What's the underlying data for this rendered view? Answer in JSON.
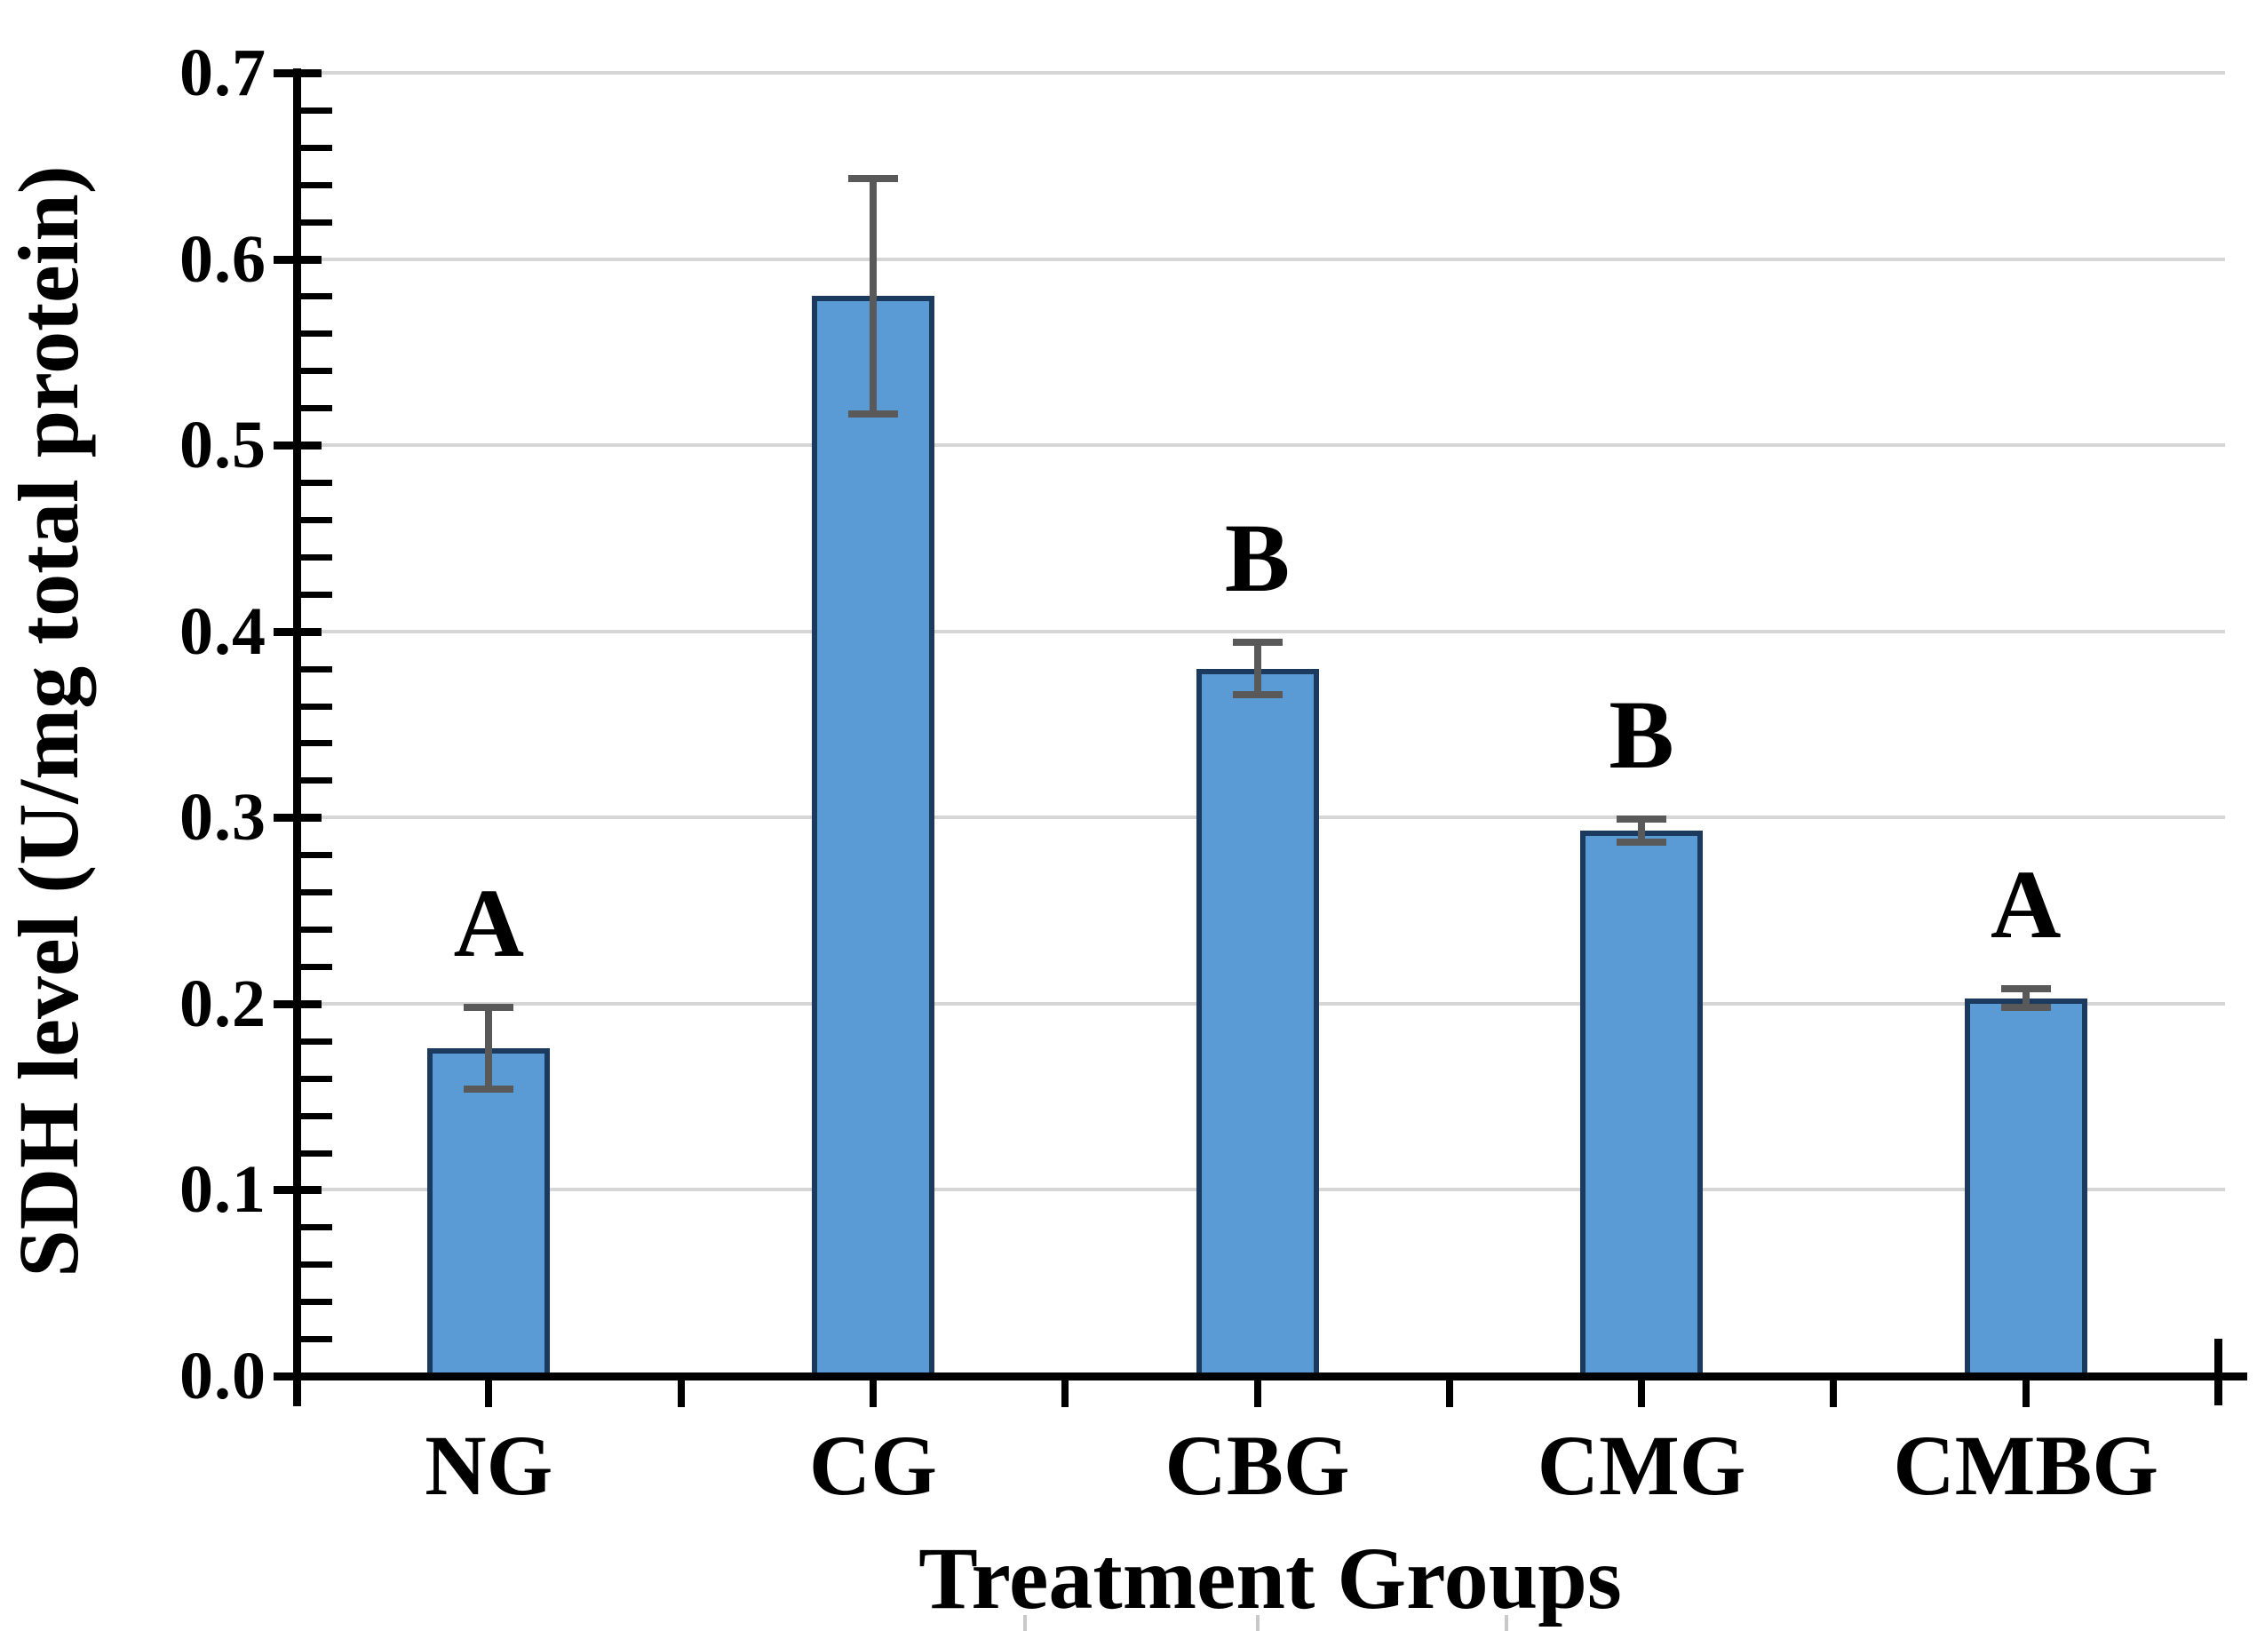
{
  "chart_data": {
    "type": "bar",
    "title": "",
    "xlabel": "Treatment Groups",
    "ylabel": "SDH level (U/mg total protein)",
    "categories": [
      "NG",
      "CG",
      "CBG",
      "CMG",
      "CMBG"
    ],
    "series": [
      {
        "name": "SDH level",
        "values": [
          0.176,
          0.58,
          0.38,
          0.293,
          0.203
        ],
        "errors": [
          0.022,
          0.063,
          0.014,
          0.006,
          0.005
        ],
        "sig_letters": [
          "A",
          "",
          "B",
          "B",
          "A"
        ]
      }
    ],
    "ylim": [
      0.0,
      0.7
    ],
    "ytick_step": 0.1,
    "ytick_minor_step": 0.02,
    "ytick_decimals": 1,
    "ytick_labels": [
      "0.0",
      "0.1",
      "0.2",
      "0.3",
      "0.4",
      "0.5",
      "0.6",
      "0.7"
    ],
    "grid": "horizontal-major",
    "legend": "none",
    "colors": {
      "bar_fill": "#5B9BD5",
      "bar_border": "#1C3A5E",
      "error_bar": "#595959",
      "gridline": "#D6D6D6",
      "axis": "#000000",
      "text": "#000000",
      "background": "#FFFFFF"
    },
    "bottom_edge_artifact_marks_x": [
      1152,
      1414,
      1694
    ]
  }
}
